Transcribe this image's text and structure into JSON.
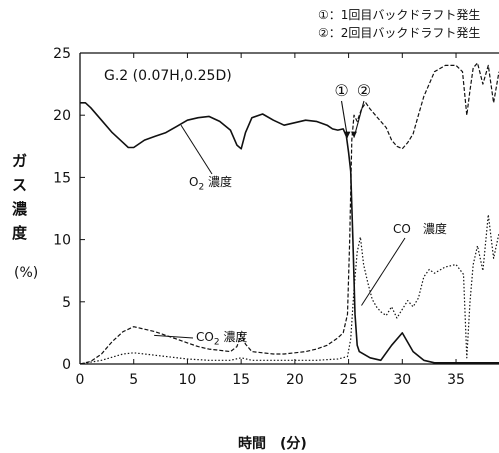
{
  "chart_data": {
    "type": "line",
    "panel_label": "G.2 (0.07H,0.25D)",
    "xlabel": "時間　(分)",
    "ylabel": "ガス濃度",
    "ylabel_unit": "(%)",
    "xlim": [
      0,
      39
    ],
    "ylim": [
      0,
      25
    ],
    "x_ticks": [
      0,
      5,
      10,
      15,
      20,
      25,
      30,
      35
    ],
    "y_ticks": [
      0,
      5,
      10,
      15,
      20,
      25
    ],
    "grid": false,
    "legend_notes": [
      "①：1回目バックドラフト発生",
      "②：2回目バックドラフト発生"
    ],
    "markers": [
      {
        "label": "①",
        "x": 24.9
      },
      {
        "label": "②",
        "x": 25.5
      }
    ],
    "series": [
      {
        "name": "O2 濃度",
        "style": "solid",
        "x": [
          0,
          0.5,
          1,
          2,
          3,
          4,
          4.5,
          5,
          6,
          7,
          8,
          9,
          10,
          11,
          12,
          13,
          14,
          14.6,
          15,
          15.4,
          16,
          17,
          18,
          19,
          20,
          21,
          22,
          23,
          23.5,
          24,
          24.5,
          24.8,
          25,
          25.2,
          25.4,
          25.6,
          25.8,
          26,
          27,
          28,
          29,
          30,
          31,
          32,
          33,
          34,
          35,
          36,
          37,
          38,
          39
        ],
        "y": [
          21,
          21,
          20.6,
          19.6,
          18.6,
          17.8,
          17.4,
          17.4,
          18,
          18.3,
          18.6,
          19.1,
          19.6,
          19.8,
          19.9,
          19.5,
          18.8,
          17.6,
          17.3,
          18.6,
          19.8,
          20.1,
          19.6,
          19.2,
          19.4,
          19.6,
          19.5,
          19.2,
          18.9,
          18.8,
          18.9,
          18.3,
          17.0,
          15.5,
          10,
          4,
          1.5,
          1.0,
          0.5,
          0.3,
          1.5,
          2.5,
          1.0,
          0.3,
          0.1,
          0.1,
          0.1,
          0.1,
          0.1,
          0.1,
          0.1
        ]
      },
      {
        "name": "CO2 濃度",
        "style": "dashed",
        "x": [
          0,
          1,
          2,
          3,
          4,
          5,
          6,
          7,
          8,
          9,
          10,
          11,
          12,
          13,
          14,
          14.6,
          15,
          15.4,
          16,
          17,
          18,
          19,
          20,
          21,
          22,
          23,
          23.5,
          24,
          24.5,
          24.9,
          25.1,
          25.3,
          25.5,
          25.8,
          26.2,
          26.6,
          27,
          27.5,
          28,
          28.5,
          29,
          29.5,
          30,
          30.5,
          31,
          31.5,
          32,
          32.5,
          33,
          34,
          35,
          35.6,
          36,
          36.3,
          36.6,
          37,
          37.5,
          38,
          38.5,
          39
        ],
        "y": [
          0,
          0.2,
          0.8,
          1.8,
          2.6,
          3.0,
          2.8,
          2.6,
          2.3,
          2.0,
          1.7,
          1.4,
          1.2,
          1.1,
          1.0,
          1.4,
          2.4,
          1.6,
          1.0,
          0.9,
          0.8,
          0.8,
          0.9,
          1.0,
          1.2,
          1.5,
          1.8,
          2.1,
          2.5,
          4.0,
          10,
          18,
          20,
          19.5,
          20.5,
          21,
          20.5,
          20,
          19.5,
          19,
          18,
          17.5,
          17.3,
          17.8,
          18.5,
          20,
          21.5,
          22.5,
          23.5,
          24,
          24,
          23.5,
          20,
          22,
          23.8,
          24.2,
          22.5,
          24,
          21,
          23.5
        ]
      },
      {
        "name": "CO 濃度",
        "style": "dotted",
        "x": [
          0,
          2,
          4,
          5,
          6,
          8,
          10,
          12,
          14,
          15,
          16,
          18,
          20,
          22,
          24,
          24.9,
          25.2,
          25.5,
          25.8,
          26.1,
          26.4,
          26.8,
          27.2,
          27.6,
          28,
          28.5,
          29,
          29.5,
          30,
          30.5,
          31,
          31.5,
          32,
          32.5,
          33,
          34,
          35,
          35.7,
          36,
          36.3,
          36.6,
          37,
          37.5,
          38,
          38.5,
          39
        ],
        "y": [
          0,
          0.3,
          0.8,
          0.9,
          0.8,
          0.6,
          0.4,
          0.3,
          0.3,
          0.5,
          0.3,
          0.3,
          0.3,
          0.3,
          0.4,
          0.6,
          2.0,
          6.0,
          9.0,
          10.2,
          8.0,
          6.5,
          5.2,
          4.6,
          4.2,
          3.9,
          4.6,
          3.7,
          4.4,
          5.1,
          4.6,
          5.3,
          7.0,
          7.6,
          7.3,
          7.8,
          8.0,
          7.2,
          0.5,
          5.0,
          8.0,
          9.5,
          7.5,
          12.0,
          8.5,
          10.5
        ]
      }
    ],
    "annotations": [
      {
        "text": "O",
        "sub": "2",
        "rest": " 濃度",
        "series": "O2 濃度"
      },
      {
        "text": "CO",
        "sub": "2",
        "rest": " 濃度",
        "series": "CO2 濃度"
      },
      {
        "text": "CO　濃度",
        "sub": "",
        "rest": "",
        "series": "CO 濃度"
      }
    ]
  }
}
